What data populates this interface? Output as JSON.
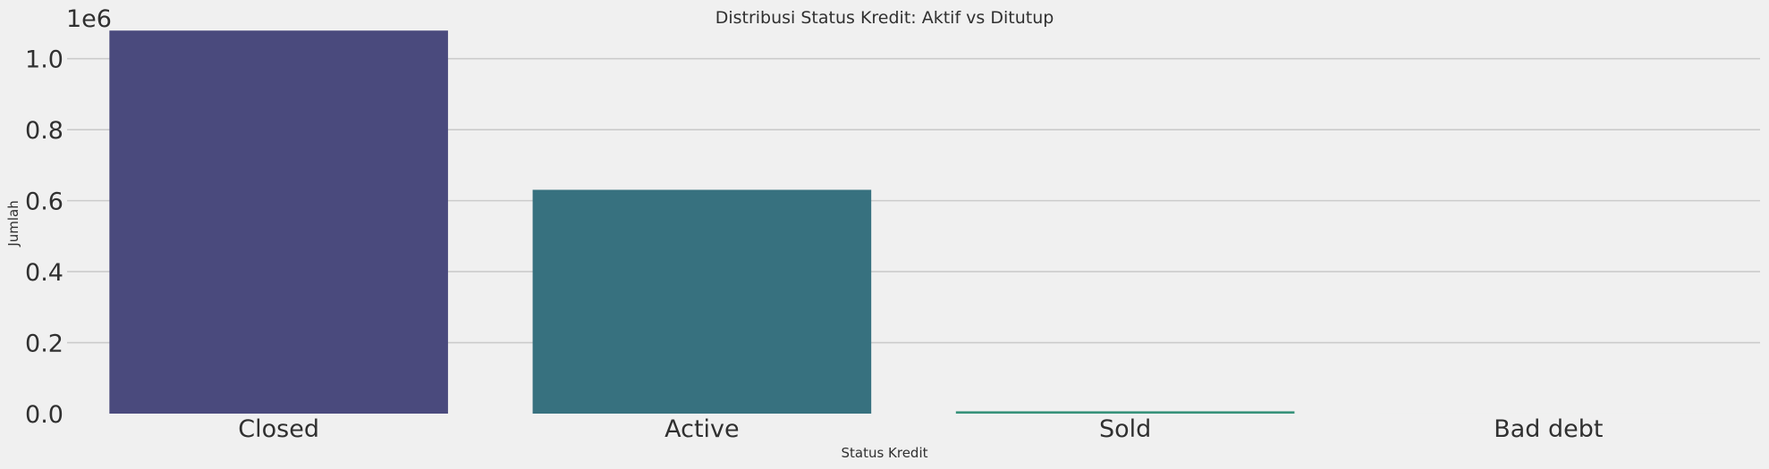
{
  "chart_data": {
    "type": "bar",
    "title": "Distribusi Status Kredit: Aktif vs Ditutup",
    "xlabel": "Status Kredit",
    "ylabel": "Jumlah",
    "axis_multiplier": "1e6",
    "categories": [
      "Closed",
      "Active",
      "Sold",
      "Bad debt"
    ],
    "values": [
      1079273,
      630607,
      6527,
      21
    ],
    "bar_colors": [
      "#4a4a7d",
      "#37717f",
      "#37927a",
      "#4cb067"
    ],
    "ylim": [
      0,
      1.1
    ],
    "y_ticks": [
      0.0,
      0.2,
      0.4,
      0.6,
      0.8,
      1.0
    ],
    "y_tick_labels": [
      "0.0",
      "0.2",
      "0.4",
      "0.6",
      "0.8",
      "1.0"
    ],
    "grid": true,
    "grid_axis": "y",
    "background": "#f0f0f0",
    "grid_color": "#cbcbcb"
  }
}
